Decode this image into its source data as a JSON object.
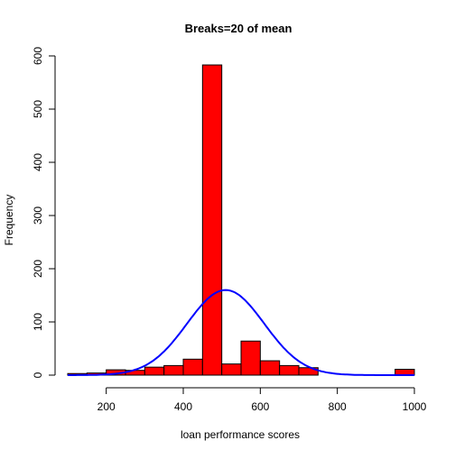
{
  "chart_data": {
    "type": "bar",
    "title": "Breaks=20 of mean",
    "xlabel": "loan performance scores",
    "ylabel": "Frequency",
    "xlim": [
      100,
      1000
    ],
    "ylim": [
      0,
      600
    ],
    "x_ticks": [
      200,
      400,
      600,
      800,
      1000
    ],
    "y_ticks": [
      0,
      100,
      200,
      300,
      400,
      500,
      600
    ],
    "bin_width": 50,
    "bins": [
      {
        "start": 100,
        "end": 150,
        "count": 3
      },
      {
        "start": 150,
        "end": 200,
        "count": 4
      },
      {
        "start": 200,
        "end": 250,
        "count": 10
      },
      {
        "start": 250,
        "end": 300,
        "count": 9
      },
      {
        "start": 300,
        "end": 350,
        "count": 15
      },
      {
        "start": 350,
        "end": 400,
        "count": 18
      },
      {
        "start": 400,
        "end": 450,
        "count": 30
      },
      {
        "start": 450,
        "end": 500,
        "count": 583
      },
      {
        "start": 500,
        "end": 550,
        "count": 21
      },
      {
        "start": 550,
        "end": 600,
        "count": 64
      },
      {
        "start": 600,
        "end": 650,
        "count": 27
      },
      {
        "start": 650,
        "end": 700,
        "count": 18
      },
      {
        "start": 700,
        "end": 750,
        "count": 14
      },
      {
        "start": 750,
        "end": 800,
        "count": 0
      },
      {
        "start": 800,
        "end": 850,
        "count": 0
      },
      {
        "start": 850,
        "end": 900,
        "count": 0
      },
      {
        "start": 900,
        "end": 950,
        "count": 0
      },
      {
        "start": 950,
        "end": 1000,
        "count": 11
      }
    ],
    "bar_color": "#ff0000",
    "bar_border_color": "#000000",
    "curve": {
      "type": "normal-density",
      "color": "#0000ff",
      "mean": 510,
      "sd": 100,
      "peak": 160,
      "x_range": [
        100,
        1000
      ]
    },
    "grid": false,
    "legend": "none"
  }
}
